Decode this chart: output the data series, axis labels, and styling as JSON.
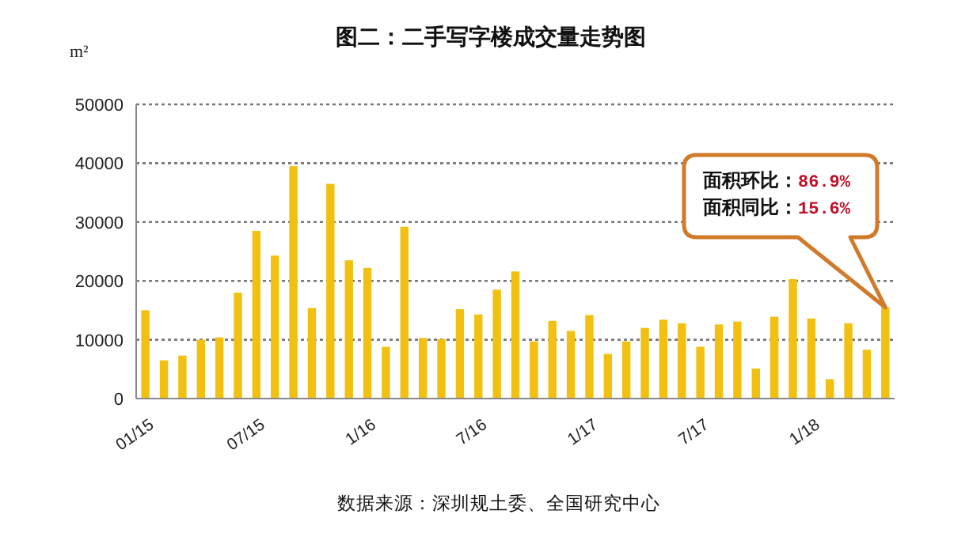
{
  "chart_data": {
    "type": "bar",
    "title": "图二：二手写字楼成交量走势图",
    "ylabel": "m²",
    "categories": [
      "01/15",
      null,
      null,
      null,
      null,
      null,
      "07/15",
      null,
      null,
      null,
      null,
      null,
      "1/16",
      null,
      null,
      null,
      null,
      null,
      "7/16",
      null,
      null,
      null,
      null,
      null,
      "1/17",
      null,
      null,
      null,
      null,
      null,
      "7/17",
      null,
      null,
      null,
      null,
      null,
      "1/18",
      null,
      null,
      null,
      null
    ],
    "values": [
      15000,
      6500,
      7300,
      10000,
      10400,
      18000,
      28500,
      24300,
      39500,
      15400,
      36500,
      23500,
      22200,
      8800,
      29200,
      10300,
      10100,
      15200,
      14300,
      18500,
      21600,
      9700,
      13200,
      11500,
      14200,
      7600,
      9700,
      12000,
      13400,
      12800,
      8800,
      12600,
      13100,
      5100,
      13900,
      20300,
      13600,
      3300,
      12800,
      8300,
      15500
    ],
    "color": "#f2c010",
    "ylim": [
      0,
      50000
    ],
    "yticks": [
      0,
      10000,
      20000,
      30000,
      40000,
      50000
    ],
    "grid": "y",
    "annotations": [
      "面积环比：86.9%",
      "面积同比：15.6%",
      "数据来源：深圳规土委、全国研究中心"
    ]
  }
}
